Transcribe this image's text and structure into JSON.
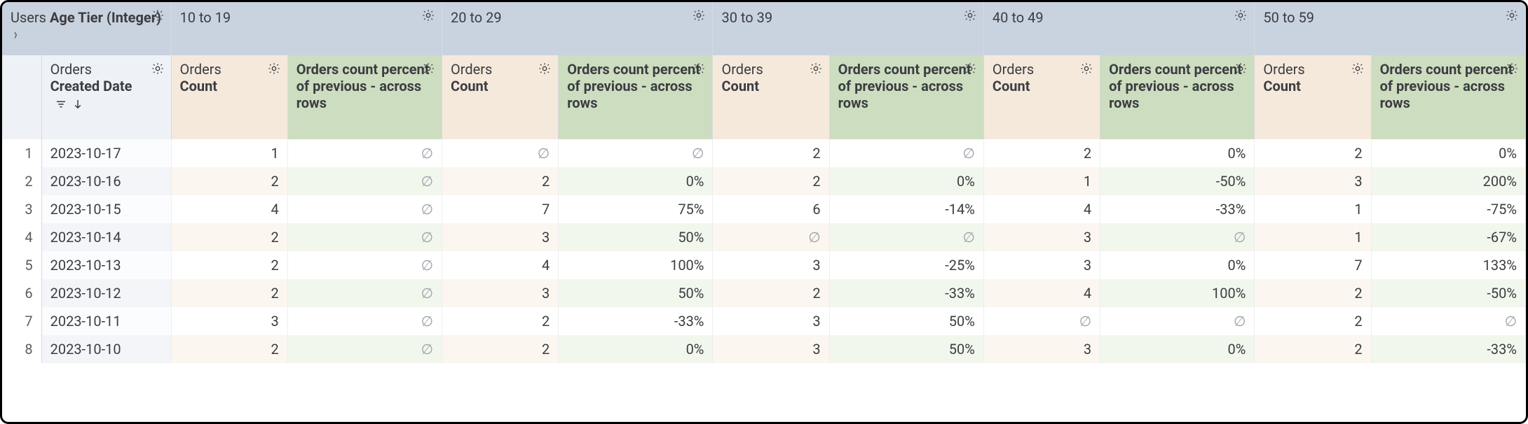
{
  "colors": {
    "pivot_bg": "#c9d2df",
    "date_head_bg": "#eef1f5",
    "count_head_bg": "#f5e9dc",
    "calc_head_bg": "#cdddbf",
    "row_even_date": "#f3f5f8",
    "row_even_count": "#fcf6f0",
    "row_even_calc": "#f2f7ed",
    "border": "#d8dadd",
    "text": "#3b3d42",
    "null": "#9aa0a8"
  },
  "pivot": {
    "label_prefix": "Users ",
    "label_bold": "Age Tier (Integer)",
    "groups": [
      "10 to 19",
      "20 to 29",
      "30 to 39",
      "40 to 49",
      "50 to 59"
    ]
  },
  "measures": {
    "date_label_prefix": "Orders ",
    "date_label_bold": "Created Date",
    "count_label_prefix": "Orders",
    "count_label_bold": "Count",
    "calc_label": "Orders count percent of previous - across rows"
  },
  "null_glyph": "∅",
  "rows": [
    {
      "n": 1,
      "date": "2023-10-17",
      "v": [
        [
          "1",
          "∅"
        ],
        [
          "∅",
          "∅"
        ],
        [
          "2",
          "∅"
        ],
        [
          "2",
          "0%"
        ],
        [
          "2",
          "0%"
        ]
      ]
    },
    {
      "n": 2,
      "date": "2023-10-16",
      "v": [
        [
          "2",
          "∅"
        ],
        [
          "2",
          "0%"
        ],
        [
          "2",
          "0%"
        ],
        [
          "1",
          "-50%"
        ],
        [
          "3",
          "200%"
        ]
      ]
    },
    {
      "n": 3,
      "date": "2023-10-15",
      "v": [
        [
          "4",
          "∅"
        ],
        [
          "7",
          "75%"
        ],
        [
          "6",
          "-14%"
        ],
        [
          "4",
          "-33%"
        ],
        [
          "1",
          "-75%"
        ]
      ]
    },
    {
      "n": 4,
      "date": "2023-10-14",
      "v": [
        [
          "2",
          "∅"
        ],
        [
          "3",
          "50%"
        ],
        [
          "∅",
          "∅"
        ],
        [
          "3",
          "∅"
        ],
        [
          "1",
          "-67%"
        ]
      ]
    },
    {
      "n": 5,
      "date": "2023-10-13",
      "v": [
        [
          "2",
          "∅"
        ],
        [
          "4",
          "100%"
        ],
        [
          "3",
          "-25%"
        ],
        [
          "3",
          "0%"
        ],
        [
          "7",
          "133%"
        ]
      ]
    },
    {
      "n": 6,
      "date": "2023-10-12",
      "v": [
        [
          "2",
          "∅"
        ],
        [
          "3",
          "50%"
        ],
        [
          "2",
          "-33%"
        ],
        [
          "4",
          "100%"
        ],
        [
          "2",
          "-50%"
        ]
      ]
    },
    {
      "n": 7,
      "date": "2023-10-11",
      "v": [
        [
          "3",
          "∅"
        ],
        [
          "2",
          "-33%"
        ],
        [
          "3",
          "50%"
        ],
        [
          "∅",
          "∅"
        ],
        [
          "2",
          "∅"
        ]
      ]
    },
    {
      "n": 8,
      "date": "2023-10-10",
      "v": [
        [
          "2",
          "∅"
        ],
        [
          "2",
          "0%"
        ],
        [
          "3",
          "50%"
        ],
        [
          "3",
          "0%"
        ],
        [
          "2",
          "-33%"
        ]
      ]
    }
  ]
}
